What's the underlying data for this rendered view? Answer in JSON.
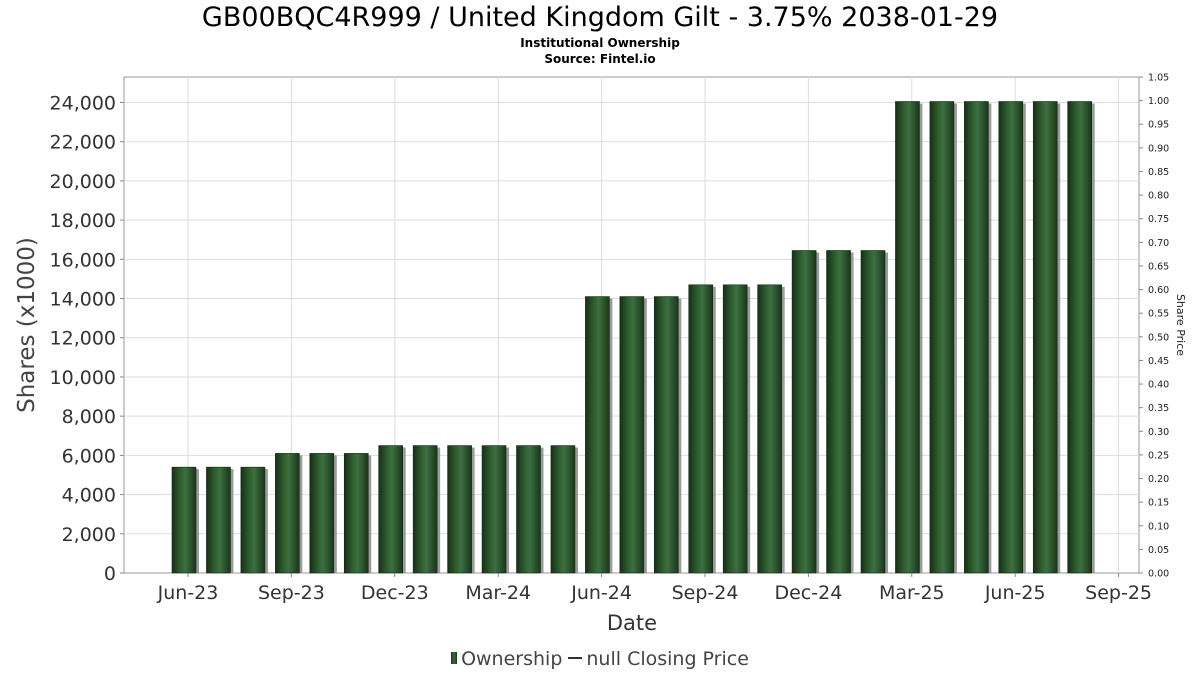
{
  "chart_data": {
    "type": "bar",
    "title": "GB00BQC4R999 / United Kingdom Gilt - 3.75% 2038-01-29",
    "subtitle": "Institutional Ownership",
    "source": "Source: Fintel.io",
    "xlabel": "Date",
    "ylabel": "Shares (x1000)",
    "ylabel_right": "Share Price",
    "ylim": [
      0,
      25300
    ],
    "ylim_right": [
      0,
      1.05
    ],
    "yticks": [
      "0",
      "2,000",
      "4,000",
      "6,000",
      "8,000",
      "10,000",
      "12,000",
      "14,000",
      "16,000",
      "18,000",
      "20,000",
      "22,000",
      "24,000"
    ],
    "yticks_right": [
      "0.00",
      "0.05",
      "0.10",
      "0.15",
      "0.20",
      "0.25",
      "0.30",
      "0.35",
      "0.40",
      "0.45",
      "0.50",
      "0.55",
      "0.60",
      "0.65",
      "0.70",
      "0.75",
      "0.80",
      "0.85",
      "0.90",
      "0.95",
      "1.00",
      "1.05"
    ],
    "xticks": [
      "Jun-23",
      "Sep-23",
      "Dec-23",
      "Mar-24",
      "Jun-24",
      "Sep-24",
      "Dec-24",
      "Mar-25",
      "Jun-25",
      "Sep-25"
    ],
    "grid": true,
    "legend_position": "bottom",
    "series": [
      {
        "name": "Ownership",
        "color": "#2d5a2d",
        "values": [
          5400,
          5400,
          5400,
          6100,
          6100,
          6100,
          6500,
          6500,
          6500,
          6500,
          6500,
          6500,
          14100,
          14100,
          14100,
          14700,
          14700,
          14700,
          16450,
          16450,
          16450,
          24050,
          24050,
          24050,
          24050,
          24050,
          24050
        ]
      }
    ],
    "legend": {
      "ownership_label": "Ownership",
      "price_label": "null Closing Price"
    }
  }
}
